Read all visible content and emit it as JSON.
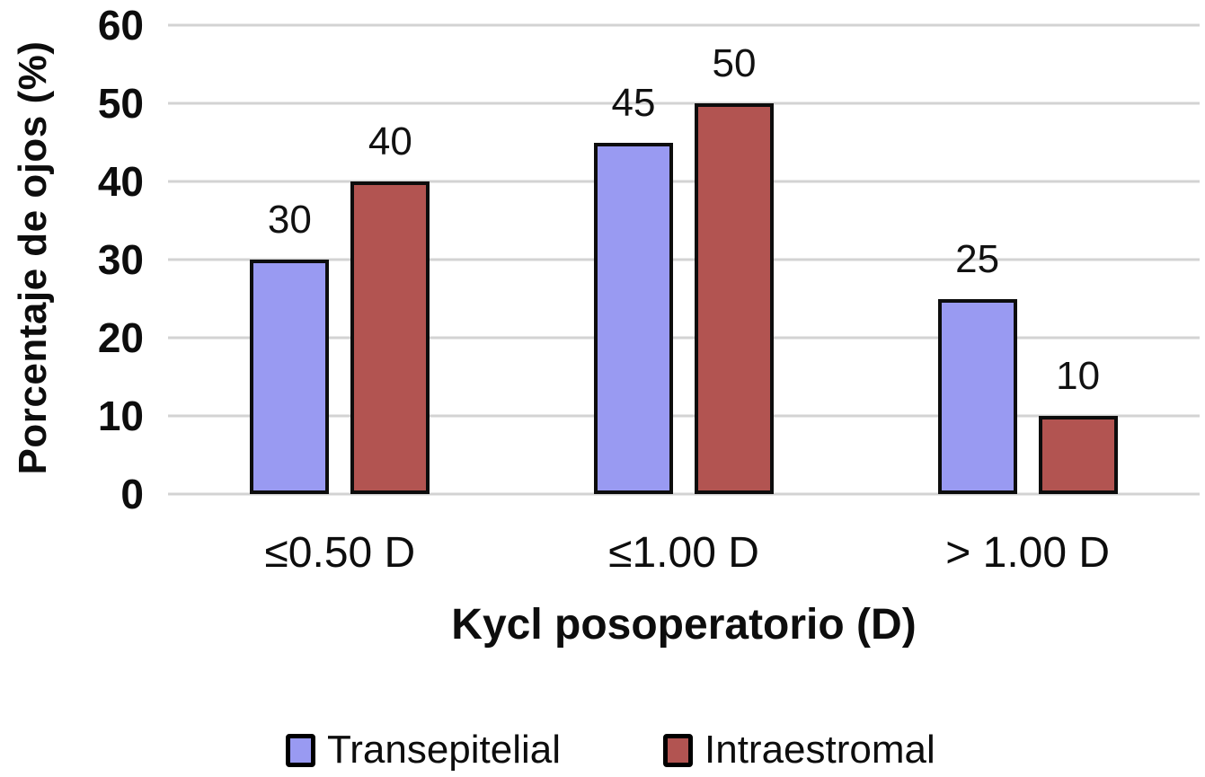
{
  "chart_data": {
    "type": "bar",
    "title": "",
    "categories": [
      "≤0.50 D",
      "≤1.00 D",
      "> 1.00 D"
    ],
    "series": [
      {
        "name": "Transepitelial",
        "color": "#999af2",
        "values": [
          30,
          45,
          25
        ]
      },
      {
        "name": "Intraestromal",
        "color": "#b25451",
        "values": [
          40,
          50,
          10
        ]
      }
    ],
    "xlabel": "Kycl posoperatorio (D)",
    "ylabel": "Porcentaje de ojos (%)",
    "ylim": [
      0,
      60
    ],
    "yticks": [
      0,
      10,
      20,
      30,
      40,
      50,
      60
    ],
    "grid": "horizontal",
    "legend_position": "bottom",
    "colors": {
      "bar_outline": "#0d0d0d",
      "gridline": "#d3d3d3",
      "text": "#0d0d0d",
      "background": "#ffffff"
    }
  }
}
